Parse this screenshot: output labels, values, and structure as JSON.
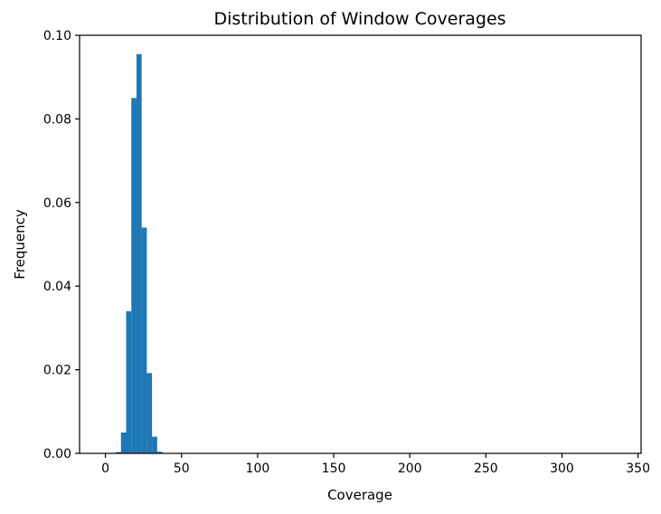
{
  "chart_data": {
    "type": "bar",
    "title": "Distribution of Window Coverages",
    "xlabel": "Coverage",
    "ylabel": "Frequency",
    "xlim": [
      -17,
      352
    ],
    "ylim": [
      0,
      0.1
    ],
    "x_ticks": [
      0,
      50,
      100,
      150,
      200,
      250,
      300,
      350
    ],
    "x_tick_labels": [
      "0",
      "50",
      "100",
      "150",
      "200",
      "250",
      "300",
      "350"
    ],
    "y_ticks": [
      0,
      0.02,
      0.04,
      0.06,
      0.08,
      0.1
    ],
    "y_tick_labels": [
      "0.00",
      "0.02",
      "0.04",
      "0.06",
      "0.08",
      "0.10"
    ],
    "grid": false,
    "bar_color": "#1f77b4",
    "bin_width": 3.4,
    "bins": [
      {
        "x": 3.4,
        "value": 0.0001
      },
      {
        "x": 6.8,
        "value": 0.0003
      },
      {
        "x": 10.2,
        "value": 0.005
      },
      {
        "x": 13.6,
        "value": 0.034
      },
      {
        "x": 17.0,
        "value": 0.085
      },
      {
        "x": 20.4,
        "value": 0.0955
      },
      {
        "x": 23.8,
        "value": 0.054
      },
      {
        "x": 27.2,
        "value": 0.0192
      },
      {
        "x": 30.6,
        "value": 0.004
      },
      {
        "x": 34.0,
        "value": 0.0004
      },
      {
        "x": 37.4,
        "value": 0.0001
      }
    ]
  }
}
